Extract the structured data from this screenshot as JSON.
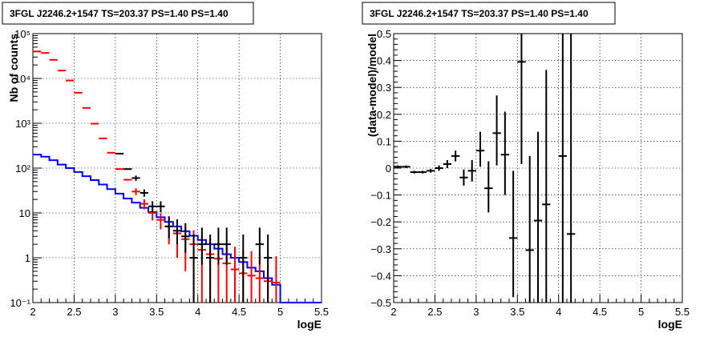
{
  "panels": [
    {
      "title": "3FGL J2246.2+1547 TS=203.37 PS=1.40 PS=1.40"
    },
    {
      "title": "3FGL J2246.2+1547 TS=203.37 PS=1.40 PS=1.40"
    }
  ],
  "chart_data": [
    {
      "type": "line",
      "title": "3FGL J2246.2+1547 TS=203.37 PS=1.40 PS=1.40",
      "xlabel": "logE",
      "ylabel": "Nb of counts",
      "xlim": [
        2,
        5.5
      ],
      "ylim": [
        0.1,
        100000
      ],
      "yscale": "log",
      "grid": true,
      "xticks": [
        "2",
        "2.5",
        "3",
        "3.5",
        "4",
        "4.5",
        "5",
        "5.5"
      ],
      "yticks": [
        "10⁻¹",
        "1",
        "10",
        "10²",
        "10³",
        "10⁴",
        "10⁵"
      ],
      "bin_width": 0.1,
      "series": [
        {
          "color": "#0000ff",
          "style": "step",
          "x": [
            2.0,
            2.1,
            2.2,
            2.3,
            2.4,
            2.5,
            2.6,
            2.7,
            2.8,
            2.9,
            3.0,
            3.1,
            3.2,
            3.3,
            3.4,
            3.5,
            3.6,
            3.7,
            3.8,
            3.9,
            4.0,
            4.1,
            4.2,
            4.3,
            4.4,
            4.5,
            4.6,
            4.7,
            4.8,
            4.9,
            5.0,
            5.1,
            5.2,
            5.3,
            5.4
          ],
          "values": [
            200,
            180,
            150,
            120,
            100,
            82,
            66,
            54,
            43,
            34,
            27,
            21,
            17,
            13,
            10.5,
            8,
            6.3,
            5,
            3.9,
            3.1,
            2.5,
            2,
            1.6,
            1.2,
            1,
            0.8,
            0.6,
            0.5,
            0.35,
            0.25,
            0.1,
            0.1,
            0.1,
            0.1,
            0.1
          ]
        },
        {
          "color": "#ff0000",
          "style": "error",
          "x": [
            2.05,
            2.15,
            2.25,
            2.35,
            2.45,
            2.55,
            2.65,
            2.75,
            2.85,
            2.95,
            3.05,
            3.15,
            3.25,
            3.35,
            3.45,
            3.55,
            3.65,
            3.75,
            3.85,
            3.95,
            4.05,
            4.15,
            4.25,
            4.35,
            4.45,
            4.55,
            4.65,
            4.75,
            4.85,
            4.95
          ],
          "values": [
            40000,
            37000,
            26000,
            15000,
            9000,
            4800,
            2200,
            980,
            460,
            220,
            95,
            55,
            30,
            16,
            10,
            7,
            5,
            3.5,
            2.6,
            2,
            1.5,
            1.2,
            0.95,
            0.75,
            0.55,
            0.45,
            0.4,
            0.35,
            0.3,
            0.28
          ],
          "err_lo": [
            0,
            0,
            0,
            0,
            0,
            0,
            0,
            0,
            0,
            0,
            0,
            0,
            5,
            4,
            3.2,
            2.7,
            3,
            2.5,
            2.1,
            1.9,
            1.45,
            1.15,
            0.93,
            0.74,
            0.54,
            0.44,
            0.39,
            0.34,
            0.29,
            0.27
          ],
          "err_hi": [
            0,
            0,
            0,
            0,
            0,
            0,
            0,
            0,
            0,
            0,
            0,
            0,
            5.5,
            4.2,
            3.4,
            2.8,
            3.2,
            2.6,
            2.3,
            2.1,
            1.7,
            1.5,
            1.4,
            1.3,
            1.2,
            1.1,
            1.0,
            0.9,
            0.9,
            0.8
          ]
        },
        {
          "color": "#000000",
          "style": "error",
          "x": [
            3.05,
            3.15,
            3.25,
            3.35,
            3.45,
            3.55,
            3.65,
            3.75,
            3.85,
            3.95,
            4.05,
            4.15,
            4.25,
            4.35,
            4.55,
            4.75,
            4.85
          ],
          "values": [
            210,
            95,
            60,
            28,
            14,
            14,
            5,
            4,
            3,
            1,
            2,
            1,
            2,
            2,
            1,
            2,
            1
          ],
          "err_lo": [
            0,
            0,
            8,
            5,
            3.7,
            3.7,
            2.3,
            2,
            1.7,
            0.9,
            1.3,
            0.9,
            1.3,
            1.3,
            0.9,
            1.3,
            0.9
          ],
          "err_hi": [
            0,
            0,
            8,
            5.5,
            4.2,
            4.2,
            3.4,
            3.2,
            2.9,
            2.3,
            2.7,
            2.3,
            2.7,
            2.7,
            2.3,
            2.7,
            2.3
          ]
        }
      ]
    },
    {
      "type": "scatter",
      "title": "3FGL J2246.2+1547 TS=203.37 PS=1.40 PS=1.40",
      "xlabel": "logE",
      "ylabel": "(data-model)/model",
      "xlim": [
        2,
        5.5
      ],
      "ylim": [
        -0.5,
        0.5
      ],
      "grid": true,
      "xticks": [
        "2",
        "2.5",
        "3",
        "3.5",
        "4",
        "4.5",
        "5",
        "5.5"
      ],
      "yticks": [
        "−0.5",
        "−0.4",
        "−0.3",
        "−0.2",
        "−0.1",
        "0",
        "0.1",
        "0.2",
        "0.3",
        "0.4",
        "0.5"
      ],
      "bin_width": 0.1,
      "series": [
        {
          "color": "#000000",
          "style": "error",
          "x": [
            2.05,
            2.15,
            2.25,
            2.35,
            2.45,
            2.55,
            2.65,
            2.75,
            2.85,
            2.95,
            3.05,
            3.15,
            3.25,
            3.35,
            3.45,
            3.55,
            3.65,
            3.75,
            3.85,
            4.05,
            4.15
          ],
          "values": [
            0.005,
            0.005,
            -0.015,
            -0.015,
            -0.01,
            0.0,
            0.015,
            0.045,
            -0.035,
            -0.01,
            0.065,
            -0.075,
            0.13,
            0.05,
            -0.26,
            0.395,
            -0.305,
            -0.195,
            -0.135,
            0.045,
            -0.245
          ],
          "err_lo": [
            0.005,
            0.005,
            0.005,
            0.005,
            0.007,
            0.01,
            0.015,
            0.02,
            0.03,
            0.04,
            0.06,
            0.09,
            0.12,
            0.15,
            0.22,
            0.38,
            0.25,
            0.35,
            0.4,
            0.6,
            0.3
          ],
          "err_hi": [
            0.005,
            0.005,
            0.005,
            0.005,
            0.007,
            0.01,
            0.015,
            0.02,
            0.03,
            0.04,
            0.07,
            0.1,
            0.14,
            0.16,
            0.25,
            0.6,
            0.35,
            0.33,
            0.5,
            0.6,
            0.8
          ]
        }
      ]
    }
  ]
}
